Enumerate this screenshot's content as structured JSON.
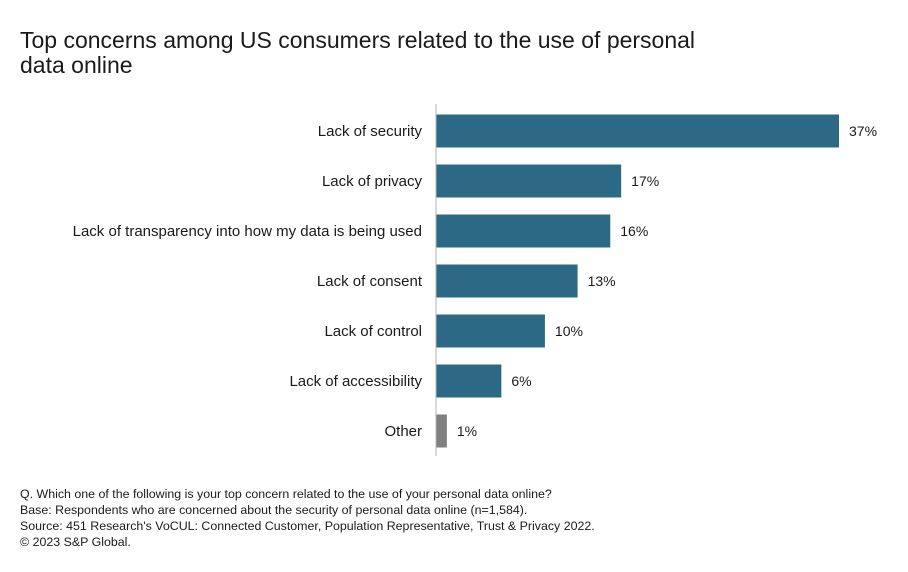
{
  "chart_data": {
    "type": "bar",
    "orientation": "horizontal",
    "title": "Top concerns among US consumers related to the use of personal data online",
    "categories": [
      "Lack of security",
      "Lack of privacy",
      "Lack of transparency into how my data is being used",
      "Lack of consent",
      "Lack of control",
      "Lack of accessibility",
      "Other"
    ],
    "values": [
      37,
      17,
      16,
      13,
      10,
      6,
      1
    ],
    "value_labels": [
      "37%",
      "17%",
      "16%",
      "13%",
      "10%",
      "6%",
      "1%"
    ],
    "unit": "%",
    "xlim": [
      0,
      37
    ],
    "grid": false,
    "bar_colors": [
      "#2c6985",
      "#2c6985",
      "#2c6985",
      "#2c6985",
      "#2c6985",
      "#2c6985",
      "#808080"
    ],
    "axis_color": "#b3b3b3"
  },
  "notes": {
    "question": "Q. Which one of the following is your top concern related to the use of your personal data online?",
    "base": "Base: Respondents who are concerned about the security of personal data online (n=1,584).",
    "source": "Source: 451 Research's VoCUL: Connected Customer, Population Representative, Trust & Privacy 2022.",
    "copyright": "© 2023 S&P Global."
  }
}
